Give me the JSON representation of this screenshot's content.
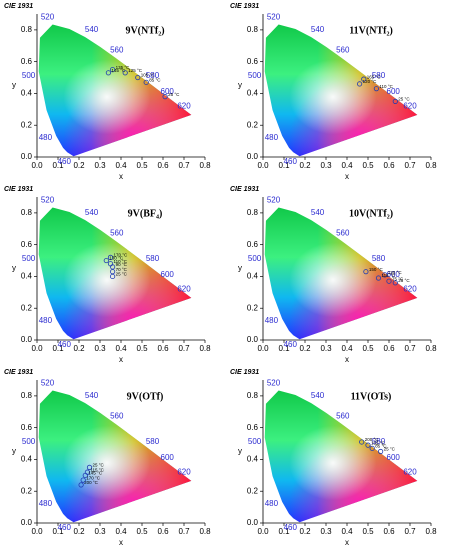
{
  "wavelength_labels": [
    460,
    480,
    500,
    520,
    540,
    560,
    580,
    600,
    620
  ],
  "chart_data": [
    {
      "type": "scatter",
      "title": "CIE 1931",
      "label": "9V(NTf₂)",
      "xlabel": "x",
      "ylabel": "y",
      "xlim": [
        0,
        0.8
      ],
      "ylim": [
        0,
        0.9
      ],
      "xticks": [
        {
          "value": 0,
          "label": "0.0"
        },
        0.1,
        0.2,
        0.3,
        0.4,
        0.5,
        0.6,
        0.7,
        0.8
      ],
      "yticks": [
        {
          "value": 0,
          "label": "0.0"
        },
        0.2,
        0.4,
        0.6,
        0.8
      ],
      "color": "#1f3bb3",
      "x": [
        0.36,
        0.34,
        0.42,
        0.48,
        0.52,
        0.61
      ],
      "y": [
        0.55,
        0.53,
        0.53,
        0.5,
        0.47,
        0.38
      ],
      "point_labels": [
        "135 °C",
        "145 °C",
        "125 °C",
        "105 °C",
        "85 °C",
        "25 °C"
      ]
    },
    {
      "type": "scatter",
      "title": "CIE 1931",
      "label": "11V(NTf₂)",
      "xlabel": "x",
      "ylabel": "y",
      "xlim": [
        0,
        0.8
      ],
      "ylim": [
        0,
        0.9
      ],
      "xticks": [
        {
          "value": 0,
          "label": "0.0"
        },
        0.1,
        0.2,
        0.3,
        0.4,
        0.5,
        0.6,
        0.7,
        0.8
      ],
      "yticks": [
        {
          "value": 0,
          "label": "0.0"
        },
        0.2,
        0.4,
        0.6,
        0.8
      ],
      "color": "#1f3bb3",
      "x": [
        0.48,
        0.46,
        0.54,
        0.63
      ],
      "y": [
        0.49,
        0.46,
        0.43,
        0.35
      ],
      "point_labels": [
        "165 °C",
        "120 °C",
        "110 °C",
        "25 °C"
      ]
    },
    {
      "type": "scatter",
      "title": "CIE 1931",
      "label": "9V(BF₄)",
      "xlabel": "x",
      "ylabel": "y",
      "xlim": [
        0,
        0.8
      ],
      "ylim": [
        0,
        0.9
      ],
      "xticks": [
        {
          "value": 0,
          "label": "0.0"
        },
        0.1,
        0.2,
        0.3,
        0.4,
        0.5,
        0.6,
        0.7,
        0.8
      ],
      "yticks": [
        {
          "value": 0,
          "label": "0.0"
        },
        0.2,
        0.4,
        0.6,
        0.8
      ],
      "color": "#1f3bb3",
      "x": [
        0.35,
        0.33,
        0.35,
        0.36,
        0.36,
        0.36
      ],
      "y": [
        0.52,
        0.5,
        0.48,
        0.46,
        0.43,
        0.4
      ],
      "point_labels": [
        "170 °C",
        "130 °C",
        "110 °C",
        "90 °C",
        "70 °C",
        "25 °C"
      ]
    },
    {
      "type": "scatter",
      "title": "CIE 1931",
      "label": "10V(NTf₂)",
      "xlabel": "x",
      "ylabel": "y",
      "xlim": [
        0,
        0.8
      ],
      "ylim": [
        0,
        0.9
      ],
      "xticks": [
        {
          "value": 0,
          "label": "0.0"
        },
        0.1,
        0.2,
        0.3,
        0.4,
        0.5,
        0.6,
        0.7,
        0.8
      ],
      "yticks": [
        {
          "value": 0,
          "label": "0.0"
        },
        0.2,
        0.4,
        0.6,
        0.8
      ],
      "color": "#1f3bb3",
      "x": [
        0.58,
        0.49,
        0.55,
        0.6,
        0.63
      ],
      "y": [
        0.41,
        0.43,
        0.39,
        0.37,
        0.36
      ],
      "point_labels": [
        "130 °C",
        "150 °C",
        "115 °C",
        "75 °C",
        "25 °C"
      ]
    },
    {
      "type": "scatter",
      "title": "CIE 1931",
      "label": "9V(OTf)",
      "xlabel": "x",
      "ylabel": "y",
      "xlim": [
        0,
        0.8
      ],
      "ylim": [
        0,
        0.9
      ],
      "xticks": [
        {
          "value": 0,
          "label": "0.0"
        },
        0.1,
        0.2,
        0.3,
        0.4,
        0.5,
        0.6,
        0.7,
        0.8
      ],
      "yticks": [
        {
          "value": 0,
          "label": "0.0"
        },
        0.2,
        0.4,
        0.6,
        0.8
      ],
      "color": "#1f3bb3",
      "x": [
        0.25,
        0.24,
        0.23,
        0.22,
        0.21
      ],
      "y": [
        0.35,
        0.32,
        0.3,
        0.27,
        0.24
      ],
      "point_labels": [
        "25 °C",
        "115 °C",
        "145 °C",
        "170 °C",
        "200 °C"
      ]
    },
    {
      "type": "scatter",
      "title": "CIE 1931",
      "label": "11V(OTs)",
      "xlabel": "x",
      "ylabel": "y",
      "xlim": [
        0,
        0.8
      ],
      "ylim": [
        0,
        0.9
      ],
      "xticks": [
        {
          "value": 0,
          "label": "0.0"
        },
        0.1,
        0.2,
        0.3,
        0.4,
        0.5,
        0.6,
        0.7,
        0.8
      ],
      "yticks": [
        {
          "value": 0,
          "label": "0.0"
        },
        0.2,
        0.4,
        0.6,
        0.8
      ],
      "color": "#1f3bb3",
      "x": [
        0.56,
        0.52,
        0.5,
        0.47
      ],
      "y": [
        0.45,
        0.47,
        0.49,
        0.51
      ],
      "point_labels": [
        "25 °C",
        "85 °C",
        "155 °C",
        "200 °C"
      ]
    }
  ]
}
